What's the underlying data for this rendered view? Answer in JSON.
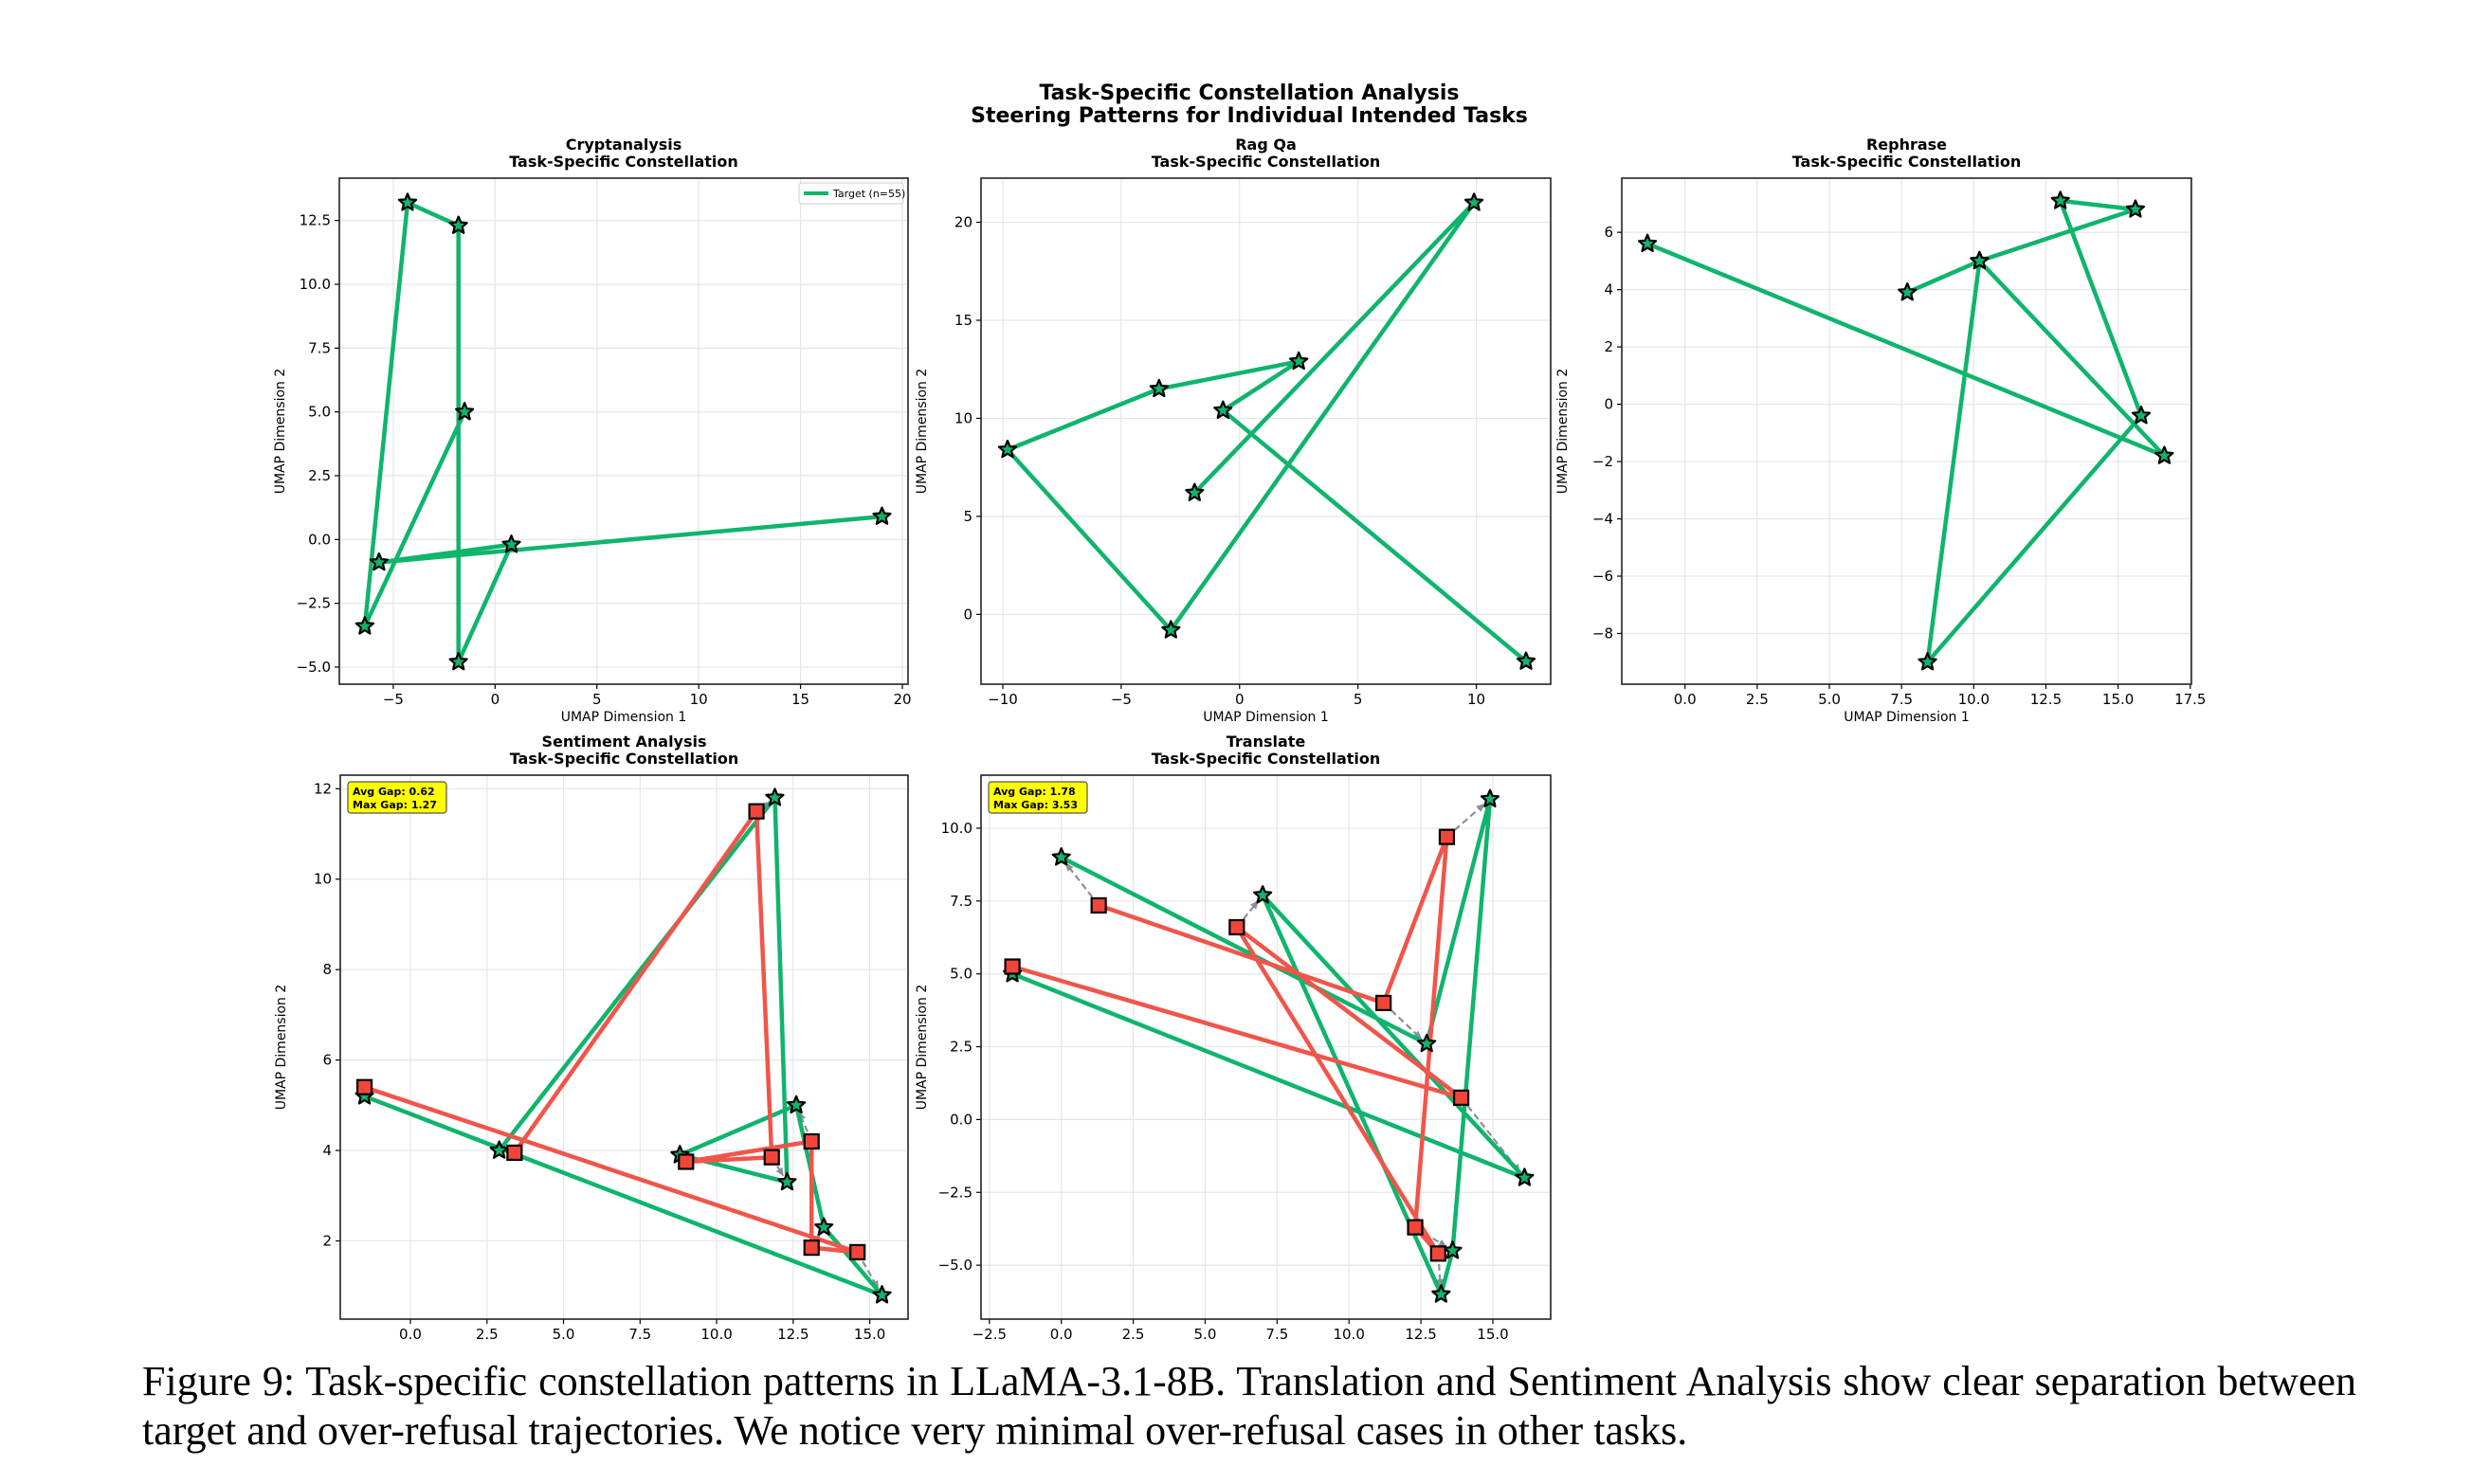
{
  "figure": {
    "suptitle_line1": "Task-Specific Constellation Analysis",
    "suptitle_line2": "Steering Patterns for Individual Intended Tasks",
    "caption": "Figure 9: Task-specific constellation patterns in LLaMA-3.1-8B. Translation and Sentiment Analysis show clear separation between target and over-refusal trajectories. We notice very minimal over-refusal cases in other tasks."
  },
  "colors": {
    "target": "#0fb46d",
    "over_refusal": "#f0554a",
    "marker_square": "#f2453a",
    "gap_arrow": "#8a8f99",
    "annotation_box": "#ffff00"
  },
  "chart_data": [
    {
      "type": "line",
      "title": "Cryptanalysis",
      "subtitle": "Task-Specific Constellation",
      "xlabel": "UMAP Dimension 1",
      "ylabel": "UMAP Dimension 2",
      "xlim": [
        -7.65,
        20.28
      ],
      "ylim": [
        -5.67,
        14.16
      ],
      "grid": true,
      "legend": "top-right",
      "xticks": [
        "−5",
        "0",
        "5",
        "10",
        "15",
        "20"
      ],
      "xtick_values": [
        -5,
        0,
        5,
        10,
        15,
        20
      ],
      "yticks": [
        "−5.0",
        "−2.5",
        "0.0",
        "2.5",
        "5.0",
        "7.5",
        "10.0",
        "12.5"
      ],
      "ytick_values": [
        -5,
        -2.5,
        0,
        2.5,
        5,
        7.5,
        10,
        12.5
      ],
      "series": [
        {
          "name": "Target (n=55)",
          "kind": "target",
          "x": [
            -1.5,
            -6.4,
            -4.3,
            -1.8,
            -1.8,
            0.8,
            -5.7,
            19.0
          ],
          "y": [
            5.0,
            -3.4,
            13.2,
            12.3,
            -4.8,
            -0.2,
            -0.9,
            0.9
          ]
        }
      ]
    },
    {
      "type": "line",
      "title": "Rag Qa",
      "subtitle": "Task-Specific Constellation",
      "xlabel": "UMAP Dimension 1",
      "ylabel": "UMAP Dimension 2",
      "xlim": [
        -10.92,
        13.14
      ],
      "ylim": [
        -3.56,
        22.25
      ],
      "grid": true,
      "xticks": [
        "−10",
        "−5",
        "0",
        "5",
        "10"
      ],
      "xtick_values": [
        -10,
        -5,
        0,
        5,
        10
      ],
      "yticks": [
        "0",
        "5",
        "10",
        "15",
        "20"
      ],
      "ytick_values": [
        0,
        5,
        10,
        15,
        20
      ],
      "series": [
        {
          "kind": "target",
          "x": [
            12.1,
            -0.7,
            2.5,
            -3.4,
            -9.8,
            -2.9,
            9.9,
            -1.9
          ],
          "y": [
            -2.4,
            10.4,
            12.9,
            11.5,
            8.4,
            -0.8,
            21.0,
            6.2
          ]
        }
      ]
    },
    {
      "type": "line",
      "title": "Rephrase",
      "subtitle": "Task-Specific Constellation",
      "xlabel": "UMAP Dimension 1",
      "ylabel": "UMAP Dimension 2",
      "xlim": [
        -2.19,
        17.54
      ],
      "ylim": [
        -9.77,
        7.89
      ],
      "grid": true,
      "xticks": [
        "0.0",
        "2.5",
        "5.0",
        "7.5",
        "10.0",
        "12.5",
        "15.0",
        "17.5"
      ],
      "xtick_values": [
        0,
        2.5,
        5,
        7.5,
        10,
        12.5,
        15,
        17.5
      ],
      "yticks": [
        "−8",
        "−6",
        "−4",
        "−2",
        "0",
        "2",
        "4",
        "6"
      ],
      "ytick_values": [
        -8,
        -6,
        -4,
        -2,
        0,
        2,
        4,
        6
      ],
      "series": [
        {
          "kind": "target",
          "x": [
            7.7,
            10.2,
            15.6,
            13.0,
            15.8,
            8.4,
            10.2,
            16.6,
            -1.3
          ],
          "y": [
            3.9,
            5.0,
            6.8,
            7.1,
            -0.4,
            -9.0,
            5.0,
            -1.8,
            5.6
          ]
        }
      ]
    },
    {
      "type": "line",
      "title": "Sentiment Analysis",
      "subtitle": "Task-Specific Constellation",
      "xlabel": "UMAP Dimension 1",
      "ylabel": "UMAP Dimension 2",
      "xlim": [
        -2.29,
        16.25
      ],
      "ylim": [
        0.27,
        12.3
      ],
      "grid": true,
      "xticks": [
        "0.0",
        "2.5",
        "5.0",
        "7.5",
        "10.0",
        "12.5",
        "15.0"
      ],
      "xtick_values": [
        0,
        2.5,
        5,
        7.5,
        10,
        12.5,
        15
      ],
      "yticks": [
        "2",
        "4",
        "6",
        "8",
        "10",
        "12"
      ],
      "ytick_values": [
        2,
        4,
        6,
        8,
        10,
        12
      ],
      "annotation": {
        "avg_gap": "Avg Gap: 0.62",
        "max_gap": "Max Gap: 1.27"
      },
      "gap_arrows": true,
      "series": [
        {
          "kind": "target",
          "x": [
            -1.5,
            15.4,
            13.5,
            12.6,
            8.8,
            12.3,
            11.9,
            2.9
          ],
          "y": [
            5.2,
            0.8,
            2.3,
            5.0,
            3.9,
            3.3,
            11.8,
            4.0
          ]
        },
        {
          "kind": "over_refusal",
          "x": [
            -1.5,
            14.6,
            13.1,
            13.1,
            9.0,
            11.8,
            11.3,
            3.4
          ],
          "y": [
            5.4,
            1.75,
            1.85,
            4.2,
            3.75,
            3.85,
            11.5,
            3.95
          ]
        }
      ]
    },
    {
      "type": "line",
      "title": "Translate",
      "subtitle": "Task-Specific Constellation",
      "xlabel": "UMAP Dimension 1",
      "ylabel": "UMAP Dimension 2",
      "xlim": [
        -2.79,
        17.01
      ],
      "ylim": [
        -6.85,
        11.82
      ],
      "grid": true,
      "xticks": [
        "−2.5",
        "0.0",
        "2.5",
        "5.0",
        "7.5",
        "10.0",
        "12.5",
        "15.0"
      ],
      "xtick_values": [
        -2.5,
        0,
        2.5,
        5,
        7.5,
        10,
        12.5,
        15
      ],
      "yticks": [
        "−5.0",
        "−2.5",
        "0.0",
        "2.5",
        "5.0",
        "7.5",
        "10.0"
      ],
      "ytick_values": [
        -5,
        -2.5,
        0,
        2.5,
        5,
        7.5,
        10
      ],
      "annotation": {
        "avg_gap": "Avg Gap: 1.78",
        "max_gap": "Max Gap: 3.53"
      },
      "gap_arrows": true,
      "series": [
        {
          "kind": "target",
          "x": [
            0.0,
            12.7,
            14.9,
            13.6,
            13.2,
            7.0,
            16.1,
            -1.7
          ],
          "y": [
            9.0,
            2.6,
            11.0,
            -4.5,
            -6.0,
            7.7,
            -2.0,
            5.0
          ]
        },
        {
          "kind": "over_refusal",
          "x": [
            1.3,
            11.2,
            13.4,
            12.3,
            13.1,
            6.1,
            13.9,
            -1.7
          ],
          "y": [
            7.35,
            4.0,
            9.7,
            -3.7,
            -4.6,
            6.6,
            0.75,
            5.25
          ]
        }
      ]
    }
  ]
}
